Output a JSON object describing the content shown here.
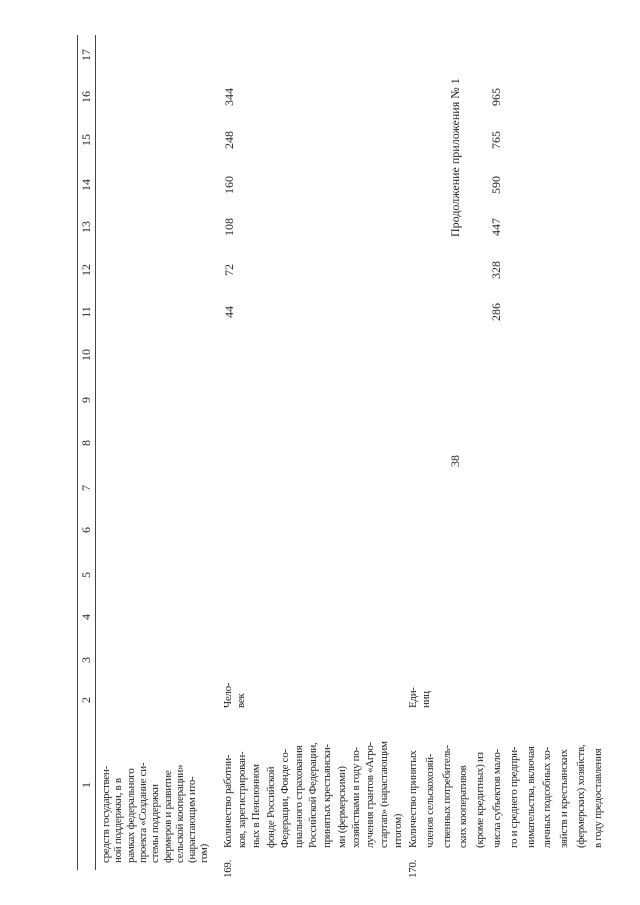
{
  "header": {
    "page_number": "38",
    "continuation": "Продолжение приложения № 1"
  },
  "table": {
    "column_numbers": [
      1,
      2,
      3,
      4,
      5,
      6,
      7,
      8,
      9,
      10,
      11,
      12,
      13,
      14,
      15,
      16,
      17
    ],
    "continuation_lines": [
      "средств государствен-",
      "ной поддержки, в в",
      "рамках федерального",
      "проекта «Создание си-",
      "стемы поддержки",
      "фермеров и развитие",
      "сельской кооперации»",
      "(нарастающим ито-",
      "гом)"
    ],
    "rows": [
      {
        "number": "169.",
        "description_lines": [
          "Количество работни-",
          "ков, зарегистрирован-",
          "ных в Пенсионном",
          "фонде Российской",
          "Федерации, Фонде со-",
          "циального страхования",
          "Российской Федерации,",
          "принятых крестьянски-",
          "ми (фермерскими)",
          "хозяйствами в году по-",
          "лучения грантов «Агро-",
          "стартап» (нарастающим",
          "итогом)"
        ],
        "unit_lines": [
          "Чело-",
          "век"
        ],
        "cells": [
          null,
          null,
          null,
          null,
          null,
          null,
          null,
          null,
          44,
          72,
          108,
          160,
          248,
          344,
          null
        ]
      },
      {
        "number": "170.",
        "description_lines": [
          "Количество принятых",
          "членов сельскохозяй-",
          "ственных потребитель-",
          "ских кооперативов",
          "(кроме кредитных) из",
          "числа субъектов мало-",
          "го и среднего предпри-",
          "нимательства, включая",
          "личных подсобных хо-",
          "зяйств и крестьянских",
          "(фермерских) хозяйств,",
          "в году предоставления"
        ],
        "unit_lines": [
          "Еди-",
          "ниц"
        ],
        "cells": [
          null,
          null,
          null,
          null,
          null,
          null,
          null,
          null,
          286,
          328,
          447,
          590,
          765,
          965,
          null
        ]
      }
    ]
  }
}
